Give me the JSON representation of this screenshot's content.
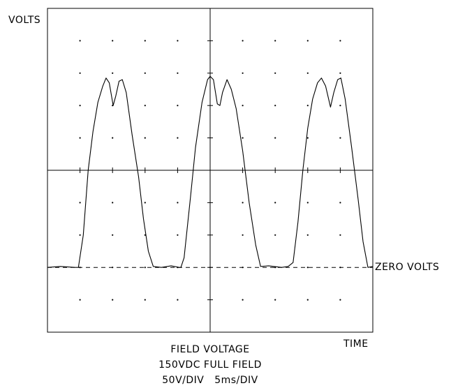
{
  "labels": {
    "y_axis": "VOLTS",
    "x_axis": "TIME",
    "zero_ref": "ZERO VOLTS"
  },
  "caption": {
    "line1": "FIELD VOLTAGE",
    "line2": "150VDC FULL FIELD",
    "line3": "50V/DIV   5ms/DIV"
  },
  "chart_data": {
    "type": "line",
    "title": "FIELD VOLTAGE",
    "subtitle": "150VDC FULL FIELD",
    "xlabel": "TIME",
    "ylabel": "VOLTS",
    "scale": "50V/DIV   5ms/DIV",
    "divisions": {
      "x": 10,
      "y": 10
    },
    "xlim_div": [
      0,
      10
    ],
    "ylim_div": [
      -5,
      5
    ],
    "zero_volts_div": -3,
    "grid": "dotted",
    "series": [
      {
        "points_div": [
          [
            0.0,
            -3.0
          ],
          [
            0.4,
            -2.97
          ],
          [
            0.85,
            -3.0
          ],
          [
            0.95,
            -3.0
          ],
          [
            1.1,
            -2.0
          ],
          [
            1.25,
            0.0
          ],
          [
            1.4,
            1.2
          ],
          [
            1.55,
            2.1
          ],
          [
            1.7,
            2.6
          ],
          [
            1.8,
            2.85
          ],
          [
            1.9,
            2.7
          ],
          [
            2.02,
            2.0
          ],
          [
            2.1,
            2.3
          ],
          [
            2.2,
            2.75
          ],
          [
            2.3,
            2.8
          ],
          [
            2.42,
            2.4
          ],
          [
            2.6,
            1.1
          ],
          [
            2.8,
            -0.2
          ],
          [
            2.95,
            -1.5
          ],
          [
            3.1,
            -2.5
          ],
          [
            3.25,
            -2.97
          ],
          [
            3.5,
            -3.0
          ],
          [
            3.8,
            -2.95
          ],
          [
            4.05,
            -3.0
          ],
          [
            4.1,
            -3.0
          ],
          [
            4.2,
            -2.7
          ],
          [
            4.4,
            -0.8
          ],
          [
            4.55,
            0.7
          ],
          [
            4.75,
            2.1
          ],
          [
            4.92,
            2.8
          ],
          [
            5.0,
            2.9
          ],
          [
            5.1,
            2.8
          ],
          [
            5.22,
            2.05
          ],
          [
            5.3,
            2.0
          ],
          [
            5.38,
            2.4
          ],
          [
            5.52,
            2.8
          ],
          [
            5.65,
            2.5
          ],
          [
            5.8,
            1.9
          ],
          [
            6.0,
            0.6
          ],
          [
            6.2,
            -1.0
          ],
          [
            6.4,
            -2.3
          ],
          [
            6.55,
            -2.97
          ],
          [
            6.8,
            -2.95
          ],
          [
            7.2,
            -3.0
          ],
          [
            7.4,
            -2.97
          ],
          [
            7.55,
            -2.85
          ],
          [
            7.7,
            -1.6
          ],
          [
            7.85,
            0.0
          ],
          [
            8.0,
            1.3
          ],
          [
            8.15,
            2.2
          ],
          [
            8.3,
            2.7
          ],
          [
            8.42,
            2.85
          ],
          [
            8.55,
            2.6
          ],
          [
            8.7,
            1.95
          ],
          [
            8.8,
            2.4
          ],
          [
            8.92,
            2.8
          ],
          [
            9.02,
            2.85
          ],
          [
            9.15,
            2.2
          ],
          [
            9.35,
            0.7
          ],
          [
            9.55,
            -0.9
          ],
          [
            9.7,
            -2.2
          ],
          [
            9.85,
            -3.0
          ],
          [
            10.0,
            -2.97
          ]
        ]
      }
    ]
  }
}
